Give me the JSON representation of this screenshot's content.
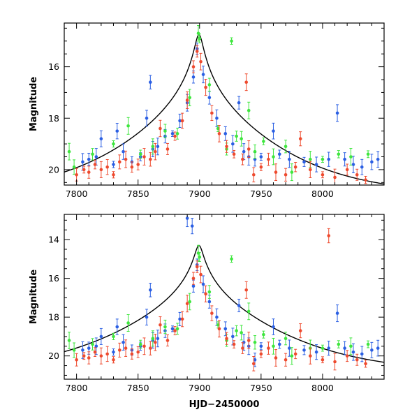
{
  "chart_data": [
    {
      "type": "scatter",
      "panel": "top",
      "xlabel": "",
      "ylabel": "Magnitude",
      "xlim": [
        7790,
        8050
      ],
      "ylim": [
        20.6,
        14.3
      ],
      "y_inverted": true,
      "x_ticks": [
        7800,
        7850,
        7900,
        7950,
        8000
      ],
      "y_ticks": [
        16,
        18,
        20
      ],
      "grid": false,
      "model_curve": {
        "color": "#000000",
        "peak_x": 7899.5,
        "peak_mag": 14.75,
        "baseline_mag": 21.0,
        "tE_days": 60,
        "u0": 0.05
      },
      "series": [
        {
          "color": "#2b5fe3",
          "values": [
            [
              7805,
              19.7
            ],
            [
              7810,
              19.6
            ],
            [
              7816,
              19.5
            ],
            [
              7820,
              18.8
            ],
            [
              7830,
              19.8
            ],
            [
              7833,
              18.5
            ],
            [
              7838,
              19.3
            ],
            [
              7845,
              19.7
            ],
            [
              7852,
              19.5
            ],
            [
              7857,
              18.0
            ],
            [
              7860,
              16.6
            ],
            [
              7862,
              19.2
            ],
            [
              7866,
              19.1
            ],
            [
              7872,
              18.7
            ],
            [
              7878,
              18.6
            ],
            [
              7884,
              18.1
            ],
            [
              7890,
              17.4
            ],
            [
              7895,
              16.4
            ],
            [
              7898,
              15.3
            ],
            [
              7903,
              16.3
            ],
            [
              7908,
              17.2
            ],
            [
              7914,
              18.0
            ],
            [
              7921,
              18.6
            ],
            [
              7927,
              19.0
            ],
            [
              7932,
              17.4
            ],
            [
              7936,
              19.3
            ],
            [
              7940,
              19.5
            ],
            [
              7945,
              19.6
            ],
            [
              7950,
              19.5
            ],
            [
              7960,
              18.5
            ],
            [
              7965,
              19.4
            ],
            [
              7973,
              19.6
            ],
            [
              7985,
              19.7
            ],
            [
              7995,
              19.8
            ],
            [
              8005,
              19.6
            ],
            [
              8012,
              17.8
            ],
            [
              8018,
              19.6
            ],
            [
              8025,
              19.8
            ],
            [
              8032,
              19.9
            ],
            [
              8040,
              19.7
            ],
            [
              8045,
              19.6
            ]
          ]
        },
        {
          "color": "#3ee63e",
          "values": [
            [
              7794,
              19.3
            ],
            [
              7798,
              19.9
            ],
            [
              7813,
              19.4
            ],
            [
              7830,
              19.0
            ],
            [
              7842,
              18.3
            ],
            [
              7852,
              19.4
            ],
            [
              7862,
              19.1
            ],
            [
              7872,
              18.5
            ],
            [
              7882,
              18.6
            ],
            [
              7892,
              17.2
            ],
            [
              7899,
              14.7
            ],
            [
              7900,
              14.9
            ],
            [
              7908,
              16.7
            ],
            [
              7915,
              18.4
            ],
            [
              7922,
              19.2
            ],
            [
              7926,
              15.0
            ],
            [
              7930,
              18.7
            ],
            [
              7934,
              18.8
            ],
            [
              7940,
              17.7
            ],
            [
              7945,
              19.3
            ],
            [
              7952,
              18.9
            ],
            [
              7960,
              19.5
            ],
            [
              7970,
              19.1
            ],
            [
              7975,
              20.1
            ],
            [
              7990,
              19.6
            ],
            [
              8000,
              19.6
            ],
            [
              8013,
              19.4
            ],
            [
              8023,
              19.5
            ],
            [
              8037,
              19.4
            ]
          ]
        },
        {
          "color": "#ee4a2e",
          "values": [
            [
              7800,
              20.2
            ],
            [
              7806,
              20.0
            ],
            [
              7810,
              20.1
            ],
            [
              7815,
              19.8
            ],
            [
              7820,
              20.0
            ],
            [
              7825,
              19.9
            ],
            [
              7830,
              20.2
            ],
            [
              7835,
              19.7
            ],
            [
              7840,
              19.6
            ],
            [
              7845,
              19.9
            ],
            [
              7850,
              19.8
            ],
            [
              7855,
              19.5
            ],
            [
              7860,
              19.6
            ],
            [
              7864,
              19.3
            ],
            [
              7868,
              18.4
            ],
            [
              7874,
              19.2
            ],
            [
              7880,
              18.7
            ],
            [
              7886,
              18.1
            ],
            [
              7890,
              17.3
            ],
            [
              7895,
              16.0
            ],
            [
              7898,
              15.4
            ],
            [
              7901,
              15.8
            ],
            [
              7905,
              16.8
            ],
            [
              7910,
              17.8
            ],
            [
              7916,
              18.6
            ],
            [
              7922,
              19.1
            ],
            [
              7928,
              19.4
            ],
            [
              7935,
              19.6
            ],
            [
              7938,
              16.6
            ],
            [
              7940,
              19.2
            ],
            [
              7944,
              20.2
            ],
            [
              7950,
              19.9
            ],
            [
              7956,
              19.6
            ],
            [
              7962,
              20.1
            ],
            [
              7970,
              20.2
            ],
            [
              7978,
              19.9
            ],
            [
              7982,
              18.8
            ],
            [
              7990,
              20.0
            ],
            [
              8000,
              20.2
            ],
            [
              8010,
              20.3
            ],
            [
              8020,
              20.0
            ],
            [
              8028,
              20.2
            ],
            [
              8035,
              20.4
            ]
          ]
        }
      ]
    },
    {
      "type": "scatter",
      "panel": "bottom",
      "xlabel": "HJD−2450000",
      "ylabel": "Magnitude",
      "xlim": [
        7790,
        8050
      ],
      "ylim": [
        21.2,
        12.7
      ],
      "y_inverted": true,
      "x_ticks": [
        7800,
        7850,
        7900,
        7950,
        8000
      ],
      "y_ticks": [
        14,
        16,
        18,
        20
      ],
      "grid": false,
      "model_curve": {
        "color": "#000000",
        "peak_x": 7899.5,
        "peak_mag": 14.3,
        "baseline_mag": 20.9,
        "tE_days": 60,
        "u0": 0.05
      },
      "series": [
        {
          "color": "#2b5fe3",
          "values": [
            [
              7805,
              19.7
            ],
            [
              7810,
              19.6
            ],
            [
              7816,
              19.5
            ],
            [
              7820,
              19.0
            ],
            [
              7830,
              19.8
            ],
            [
              7833,
              18.5
            ],
            [
              7838,
              19.3
            ],
            [
              7845,
              19.7
            ],
            [
              7852,
              19.5
            ],
            [
              7857,
              18.0
            ],
            [
              7860,
              16.6
            ],
            [
              7862,
              19.2
            ],
            [
              7866,
              19.1
            ],
            [
              7872,
              18.7
            ],
            [
              7878,
              18.6
            ],
            [
              7884,
              18.1
            ],
            [
              7890,
              12.9
            ],
            [
              7894,
              13.3
            ],
            [
              7895,
              16.4
            ],
            [
              7898,
              15.3
            ],
            [
              7903,
              16.3
            ],
            [
              7908,
              17.2
            ],
            [
              7914,
              18.0
            ],
            [
              7921,
              18.6
            ],
            [
              7927,
              19.0
            ],
            [
              7932,
              17.4
            ],
            [
              7936,
              19.3
            ],
            [
              7940,
              19.5
            ],
            [
              7945,
              20.2
            ],
            [
              7950,
              19.5
            ],
            [
              7960,
              18.5
            ],
            [
              7965,
              19.4
            ],
            [
              7973,
              19.6
            ],
            [
              7985,
              19.7
            ],
            [
              7995,
              19.8
            ],
            [
              8005,
              19.6
            ],
            [
              8012,
              17.8
            ],
            [
              8018,
              19.6
            ],
            [
              8025,
              19.8
            ],
            [
              8032,
              19.9
            ],
            [
              8040,
              19.7
            ],
            [
              8045,
              19.6
            ]
          ]
        },
        {
          "color": "#3ee63e",
          "values": [
            [
              7794,
              19.2
            ],
            [
              7798,
              19.7
            ],
            [
              7813,
              19.4
            ],
            [
              7830,
              19.0
            ],
            [
              7842,
              18.3
            ],
            [
              7852,
              19.4
            ],
            [
              7862,
              19.1
            ],
            [
              7872,
              18.5
            ],
            [
              7882,
              18.6
            ],
            [
              7892,
              17.2
            ],
            [
              7899,
              14.7
            ],
            [
              7900,
              14.9
            ],
            [
              7908,
              16.7
            ],
            [
              7915,
              18.4
            ],
            [
              7922,
              19.2
            ],
            [
              7926,
              15.0
            ],
            [
              7930,
              18.7
            ],
            [
              7934,
              18.8
            ],
            [
              7940,
              17.7
            ],
            [
              7945,
              19.3
            ],
            [
              7952,
              18.9
            ],
            [
              7960,
              19.5
            ],
            [
              7970,
              19.1
            ],
            [
              7975,
              20.0
            ],
            [
              7990,
              19.6
            ],
            [
              8000,
              19.6
            ],
            [
              8013,
              19.4
            ],
            [
              8023,
              19.5
            ],
            [
              8037,
              19.4
            ]
          ]
        },
        {
          "color": "#ee4a2e",
          "values": [
            [
              7800,
              20.2
            ],
            [
              7806,
              20.0
            ],
            [
              7810,
              20.1
            ],
            [
              7815,
              19.8
            ],
            [
              7820,
              20.0
            ],
            [
              7825,
              19.9
            ],
            [
              7830,
              20.2
            ],
            [
              7835,
              19.7
            ],
            [
              7840,
              19.6
            ],
            [
              7845,
              19.9
            ],
            [
              7850,
              19.8
            ],
            [
              7855,
              19.5
            ],
            [
              7860,
              19.6
            ],
            [
              7864,
              19.3
            ],
            [
              7868,
              18.4
            ],
            [
              7874,
              19.2
            ],
            [
              7880,
              18.7
            ],
            [
              7886,
              18.1
            ],
            [
              7890,
              17.3
            ],
            [
              7895,
              16.0
            ],
            [
              7898,
              15.4
            ],
            [
              7901,
              15.8
            ],
            [
              7905,
              16.8
            ],
            [
              7910,
              17.8
            ],
            [
              7916,
              18.6
            ],
            [
              7922,
              19.1
            ],
            [
              7928,
              19.4
            ],
            [
              7935,
              19.6
            ],
            [
              7938,
              16.6
            ],
            [
              7940,
              19.2
            ],
            [
              7944,
              20.4
            ],
            [
              7950,
              19.9
            ],
            [
              7956,
              19.6
            ],
            [
              7962,
              20.1
            ],
            [
              7970,
              20.2
            ],
            [
              7978,
              19.9
            ],
            [
              7982,
              18.7
            ],
            [
              7990,
              20.0
            ],
            [
              8000,
              20.2
            ],
            [
              8005,
              13.8
            ],
            [
              8010,
              20.3
            ],
            [
              8020,
              20.0
            ],
            [
              8028,
              20.2
            ],
            [
              8035,
              20.4
            ]
          ]
        }
      ]
    }
  ]
}
